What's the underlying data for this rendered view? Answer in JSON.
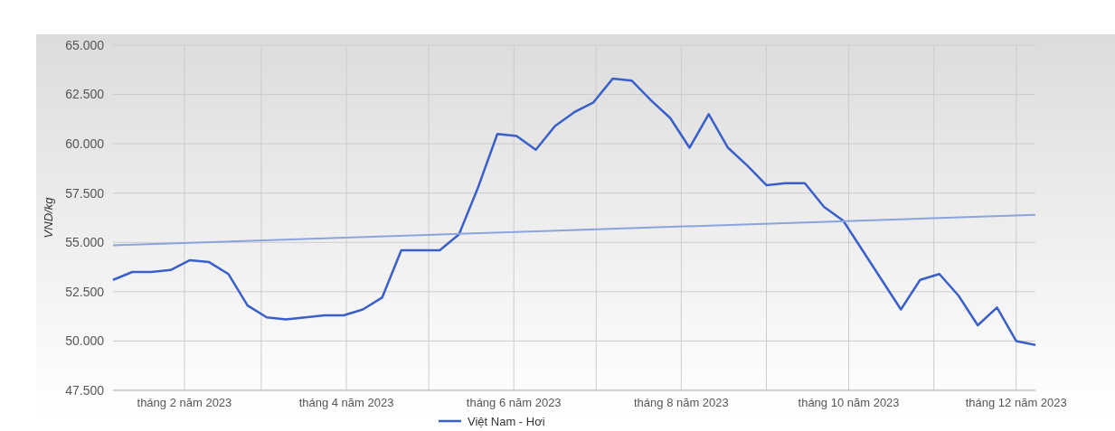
{
  "chart_data": {
    "type": "line",
    "ylabel": "VND/kg",
    "xlim": [
      "2023-01-06",
      "2023-12-08"
    ],
    "xticks": [
      {
        "value": "2023-02-01",
        "label": "tháng 2 năm 2023"
      },
      {
        "value": "2023-03-01",
        "label": null
      },
      {
        "value": "2023-04-01",
        "label": "tháng 4 năm 2023"
      },
      {
        "value": "2023-05-01",
        "label": null
      },
      {
        "value": "2023-06-01",
        "label": "tháng 6 năm 2023"
      },
      {
        "value": "2023-07-01",
        "label": null
      },
      {
        "value": "2023-08-01",
        "label": "tháng 8 năm 2023"
      },
      {
        "value": "2023-09-01",
        "label": null
      },
      {
        "value": "2023-10-01",
        "label": "tháng 10 năm 2023"
      },
      {
        "value": "2023-11-01",
        "label": null
      },
      {
        "value": "2023-12-01",
        "label": "tháng 12 năm 2023"
      }
    ],
    "ylim": [
      47500,
      65000
    ],
    "yticks": [
      {
        "value": 47500,
        "label": "47.500"
      },
      {
        "value": 50000,
        "label": "50.000"
      },
      {
        "value": 52500,
        "label": "52.500"
      },
      {
        "value": 55000,
        "label": "55.000"
      },
      {
        "value": 57500,
        "label": "57.500"
      },
      {
        "value": 60000,
        "label": "60.000"
      },
      {
        "value": 62500,
        "label": "62.500"
      },
      {
        "value": 65000,
        "label": "65.000"
      }
    ],
    "grid": true,
    "legend": "bottom",
    "marker": "none",
    "line_style": "solid",
    "series": [
      {
        "name": "Việt Nam - Hơi",
        "color": "#3a5fc8",
        "x": [
          "2023-01-06",
          "2023-01-13",
          "2023-01-20",
          "2023-01-27",
          "2023-02-03",
          "2023-02-10",
          "2023-02-17",
          "2023-02-24",
          "2023-03-03",
          "2023-03-10",
          "2023-03-17",
          "2023-03-24",
          "2023-03-31",
          "2023-04-07",
          "2023-04-14",
          "2023-04-21",
          "2023-04-28",
          "2023-05-05",
          "2023-05-12",
          "2023-05-19",
          "2023-05-26",
          "2023-06-02",
          "2023-06-09",
          "2023-06-16",
          "2023-06-23",
          "2023-06-30",
          "2023-07-07",
          "2023-07-14",
          "2023-07-21",
          "2023-07-28",
          "2023-08-04",
          "2023-08-11",
          "2023-08-18",
          "2023-08-25",
          "2023-09-01",
          "2023-09-08",
          "2023-09-15",
          "2023-09-22",
          "2023-09-29",
          "2023-10-06",
          "2023-10-13",
          "2023-10-20",
          "2023-10-27",
          "2023-11-03",
          "2023-11-10",
          "2023-11-17",
          "2023-11-24",
          "2023-12-01",
          "2023-12-08"
        ],
        "values": [
          53100,
          53500,
          53500,
          53600,
          54100,
          54000,
          53400,
          51800,
          51200,
          51100,
          51200,
          51300,
          51300,
          51600,
          52200,
          54600,
          54600,
          54600,
          55400,
          57800,
          60500,
          60400,
          59700,
          60900,
          61600,
          62100,
          63300,
          63200,
          62200,
          61300,
          59800,
          61500,
          59800,
          58900,
          57900,
          58000,
          58000,
          56800,
          56100,
          54600,
          53100,
          51600,
          53100,
          53400,
          52300,
          50800,
          51700,
          50000,
          49800
        ]
      },
      {
        "type": "line",
        "color": "#8aa4dc",
        "x": [
          "2023-01-06",
          "2023-12-08"
        ],
        "values": [
          54850,
          56400
        ]
      }
    ]
  }
}
